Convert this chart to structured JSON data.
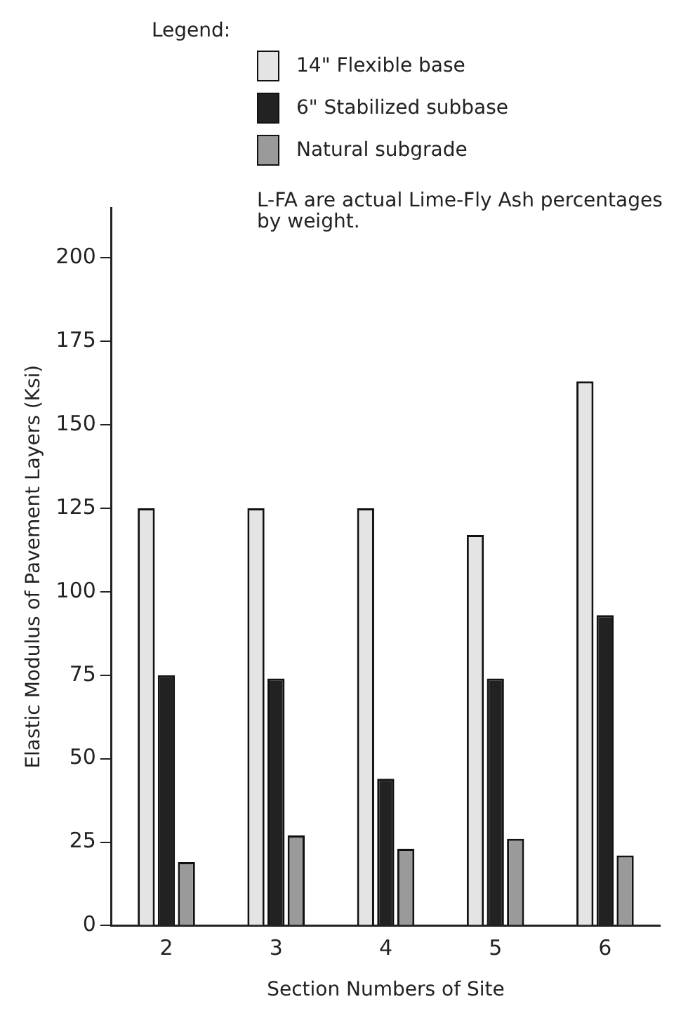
{
  "chart_data": {
    "type": "bar",
    "xlabel": "Section Numbers of Site",
    "ylabel": "Elastic Modulus of Pavement Layers (Ksi)",
    "legend_title": "Legend:",
    "annotations": [
      "L-FA are actual Lime-Fly Ash percentages by weight."
    ],
    "categories": [
      "2",
      "3",
      "4",
      "5",
      "6"
    ],
    "series": [
      {
        "name": "14\" Flexible base",
        "color": "#e4e4e4",
        "values": [
          125,
          125,
          125,
          117,
          163
        ]
      },
      {
        "name": "6\" Stabilized subbase",
        "color": "#222222",
        "values": [
          75,
          74,
          44,
          74,
          93
        ]
      },
      {
        "name": "Natural subgrade",
        "color": "#9a9a9a",
        "values": [
          19,
          27,
          23,
          26,
          21
        ]
      }
    ],
    "ylim": [
      0,
      215
    ],
    "yticks": [
      0,
      25,
      50,
      75,
      100,
      125,
      150,
      175,
      200
    ],
    "grid": false,
    "legend": "top"
  }
}
